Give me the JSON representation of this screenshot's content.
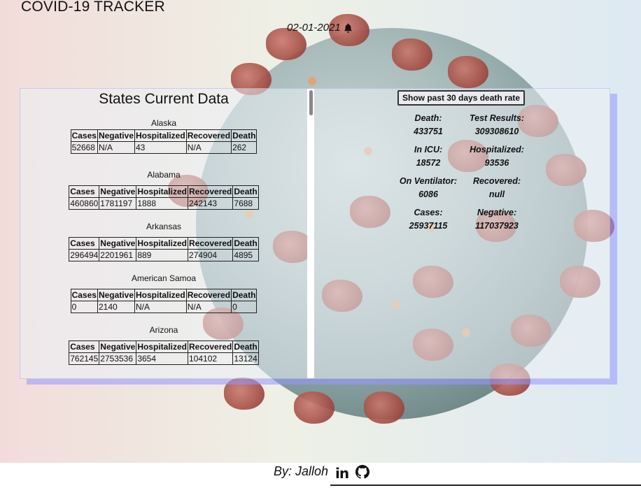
{
  "header": {
    "title": "COVID-19 TRACKER",
    "date": "02-01-2021"
  },
  "states": {
    "title": "States Current Data",
    "columns": [
      "Cases",
      "Negative",
      "Hospitalized",
      "Recovered",
      "Death"
    ],
    "items": [
      {
        "name": "Alaska",
        "cases": "52668",
        "negative": "N/A",
        "hospitalized": "43",
        "recovered": "N/A",
        "death": "262"
      },
      {
        "name": "Alabama",
        "cases": "460860",
        "negative": "1781197",
        "hospitalized": "1888",
        "recovered": "242143",
        "death": "7688"
      },
      {
        "name": "Arkansas",
        "cases": "296494",
        "negative": "2201961",
        "hospitalized": "889",
        "recovered": "274904",
        "death": "4895"
      },
      {
        "name": "American Samoa",
        "cases": "0",
        "negative": "2140",
        "hospitalized": "N/A",
        "recovered": "N/A",
        "death": "0"
      },
      {
        "name": "Arizona",
        "cases": "762145",
        "negative": "2753536",
        "hospitalized": "3654",
        "recovered": "104102",
        "death": "13124"
      }
    ]
  },
  "national": {
    "button_label": "Show past 30 days death rate",
    "stats": [
      {
        "label": "Death:",
        "value": "433751"
      },
      {
        "label": "Test Results:",
        "value": "309308610"
      },
      {
        "label": "In ICU:",
        "value": "18572"
      },
      {
        "label": "Hospitalized:",
        "value": "93536"
      },
      {
        "label": "On Ventilator:",
        "value": "6086"
      },
      {
        "label": "Recovered:",
        "value": "null"
      },
      {
        "label": "Cases:",
        "value": "25937115"
      },
      {
        "label": "Negative:",
        "value": "117037923"
      }
    ]
  },
  "footer": {
    "byline": "By: Jalloh",
    "linkedin_text": "in"
  },
  "icons": {
    "bell": "bell-icon",
    "linkedin": "linkedin-icon",
    "github": "github-icon"
  }
}
